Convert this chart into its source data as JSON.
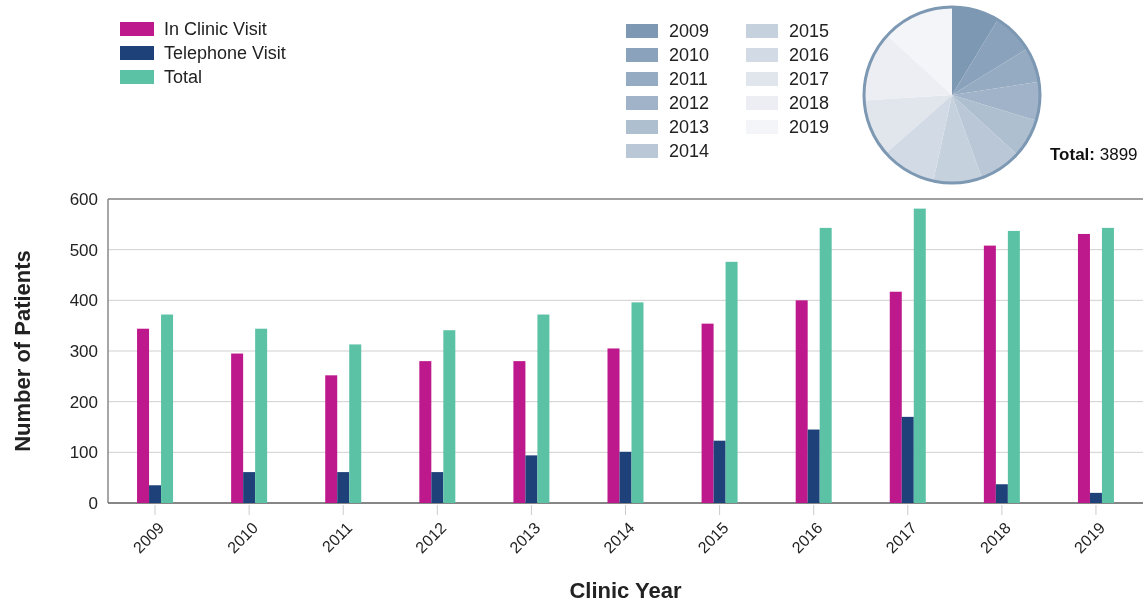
{
  "chart_data": [
    {
      "type": "bar",
      "xlabel": "Clinic Year",
      "ylabel": "Number of Patients",
      "categories": [
        "2009",
        "2010",
        "2011",
        "2012",
        "2013",
        "2014",
        "2015",
        "2016",
        "2017",
        "2018",
        "2019"
      ],
      "series": [
        {
          "name": "In Clinic Visit",
          "color": "#be198c",
          "values": [
            344,
            295,
            252,
            280,
            280,
            305,
            354,
            400,
            417,
            508,
            531
          ]
        },
        {
          "name": "Telephone Visit",
          "color": "#1f417a",
          "values": [
            35,
            61,
            61,
            61,
            94,
            101,
            123,
            145,
            170,
            37,
            20
          ]
        },
        {
          "name": "Total",
          "color": "#5cc2a5",
          "values": [
            372,
            344,
            313,
            341,
            372,
            396,
            476,
            543,
            581,
            537,
            543
          ]
        }
      ],
      "ylim": [
        0,
        600
      ],
      "yticks": [
        0,
        100,
        200,
        300,
        400,
        500,
        600
      ],
      "grid": "y",
      "legend": "top left"
    },
    {
      "type": "pie",
      "categories": [
        "2009",
        "2010",
        "2011",
        "2012",
        "2013",
        "2014",
        "2015",
        "2016",
        "2017",
        "2018",
        "2019"
      ],
      "values": [
        8.7,
        7.5,
        6.4,
        7.1,
        7.1,
        7.7,
        8.9,
        10.1,
        10.5,
        12.8,
        13.2
      ],
      "colors": [
        "#7d98b3",
        "#8aa2bb",
        "#95abc1",
        "#a0b3c8",
        "#aebfd0",
        "#b9c7d6",
        "#c6d1de",
        "#d2dbe5",
        "#e1e5ec",
        "#eceef3",
        "#f4f5f8"
      ],
      "legend": "left",
      "annotations": [
        "Total: 3899"
      ]
    }
  ]
}
